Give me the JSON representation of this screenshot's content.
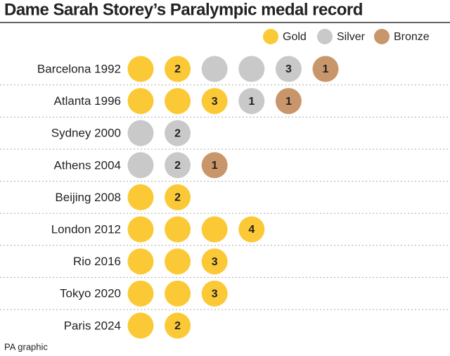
{
  "title": "Dame Sarah Storey’s Paralympic medal record",
  "legend": [
    {
      "key": "gold",
      "name": "Gold",
      "color": "#fcc936"
    },
    {
      "key": "silver",
      "name": "Silver",
      "color": "#c9c9c9"
    },
    {
      "key": "bronze",
      "name": "Bronze",
      "color": "#c9966b"
    }
  ],
  "rows": [
    {
      "label": "Barcelona 1992",
      "medals": [
        {
          "type": "gold"
        },
        {
          "type": "gold",
          "label": "2"
        },
        {
          "type": "silver"
        },
        {
          "type": "silver"
        },
        {
          "type": "silver",
          "label": "3"
        },
        {
          "type": "bronze",
          "label": "1"
        }
      ]
    },
    {
      "label": "Atlanta 1996",
      "medals": [
        {
          "type": "gold"
        },
        {
          "type": "gold"
        },
        {
          "type": "gold",
          "label": "3"
        },
        {
          "type": "silver",
          "label": "1"
        },
        {
          "type": "bronze",
          "label": "1"
        }
      ]
    },
    {
      "label": "Sydney 2000",
      "medals": [
        {
          "type": "silver"
        },
        {
          "type": "silver",
          "label": "2"
        }
      ]
    },
    {
      "label": "Athens 2004",
      "medals": [
        {
          "type": "silver"
        },
        {
          "type": "silver",
          "label": "2"
        },
        {
          "type": "bronze",
          "label": "1"
        }
      ]
    },
    {
      "label": "Beijing 2008",
      "medals": [
        {
          "type": "gold"
        },
        {
          "type": "gold",
          "label": "2"
        }
      ]
    },
    {
      "label": "London 2012",
      "medals": [
        {
          "type": "gold"
        },
        {
          "type": "gold"
        },
        {
          "type": "gold"
        },
        {
          "type": "gold",
          "label": "4"
        }
      ]
    },
    {
      "label": "Rio 2016",
      "medals": [
        {
          "type": "gold"
        },
        {
          "type": "gold"
        },
        {
          "type": "gold",
          "label": "3"
        }
      ]
    },
    {
      "label": "Tokyo 2020",
      "medals": [
        {
          "type": "gold"
        },
        {
          "type": "gold"
        },
        {
          "type": "gold",
          "label": "3"
        }
      ]
    },
    {
      "label": "Paris 2024",
      "medals": [
        {
          "type": "gold"
        },
        {
          "type": "gold",
          "label": "2"
        }
      ]
    }
  ],
  "source": "PA graphic"
}
